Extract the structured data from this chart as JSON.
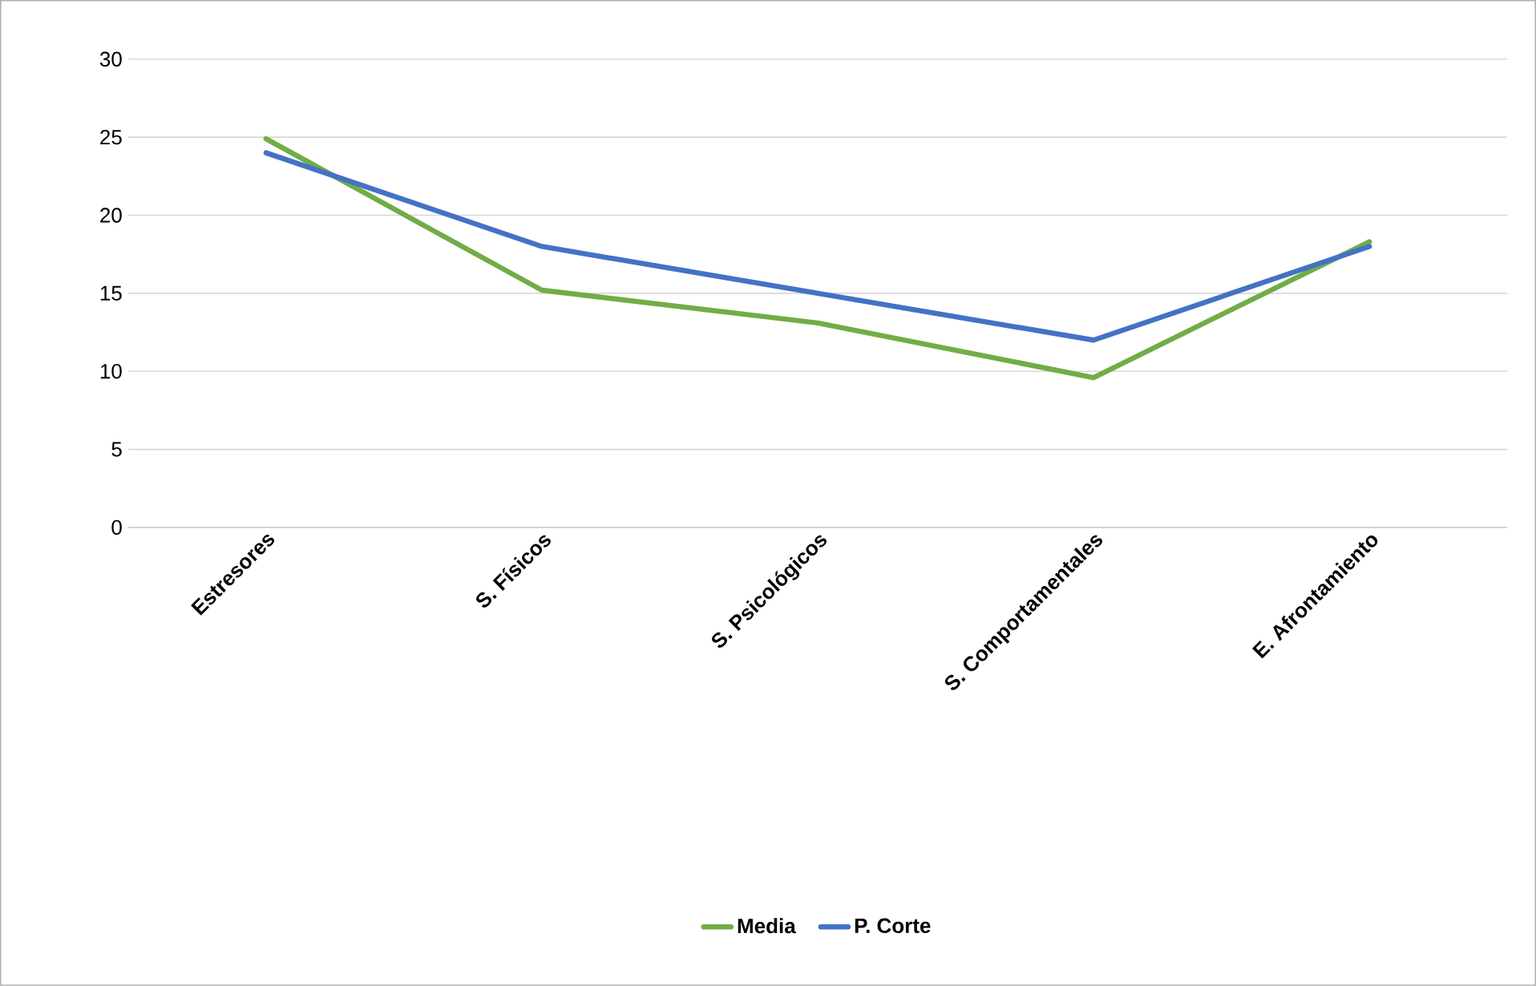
{
  "chart_data": {
    "type": "line",
    "categories": [
      "Estresores",
      "S. Físicos",
      "S. Psicológicos",
      "S. Comportamentales",
      "E. Afrontamiento"
    ],
    "series": [
      {
        "name": "Media",
        "color": "#70ad47",
        "values": [
          24.9,
          15.2,
          13.1,
          9.6,
          18.3
        ]
      },
      {
        "name": "P. Corte",
        "color": "#4472c4",
        "values": [
          24,
          18,
          15,
          12,
          18
        ]
      }
    ],
    "ylim": [
      0,
      30
    ],
    "yticks": [
      0,
      5,
      10,
      15,
      20,
      25,
      30
    ],
    "grid": "y",
    "legend": "bottom",
    "marker": "none",
    "line_style": "solid"
  }
}
